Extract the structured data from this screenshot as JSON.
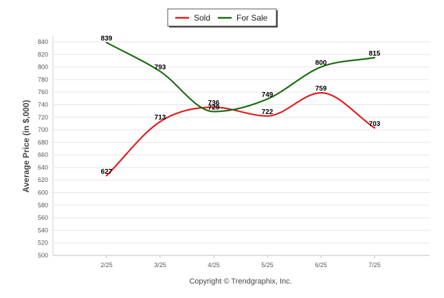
{
  "chart_data": {
    "type": "line",
    "title": "",
    "xlabel": "",
    "ylabel": "Average Price (in $,000)",
    "categories": [
      "2/25",
      "3/25",
      "4/25",
      "5/25",
      "6/25",
      "7/25"
    ],
    "ylim": [
      500,
      840
    ],
    "yticks": [
      500,
      520,
      540,
      560,
      580,
      600,
      620,
      640,
      660,
      680,
      700,
      720,
      740,
      760,
      780,
      800,
      820,
      840
    ],
    "grid": true,
    "legend_position": "top-center",
    "smooth": true,
    "series": [
      {
        "name": "Sold",
        "color": "#e31a1c",
        "values": [
          627,
          713,
          736,
          722,
          759,
          703
        ]
      },
      {
        "name": "For Sale",
        "color": "#1a6b12",
        "values": [
          839,
          793,
          729,
          749,
          800,
          815
        ]
      }
    ]
  },
  "footer": {
    "credit": "Copyright © Trendgraphix, Inc."
  }
}
